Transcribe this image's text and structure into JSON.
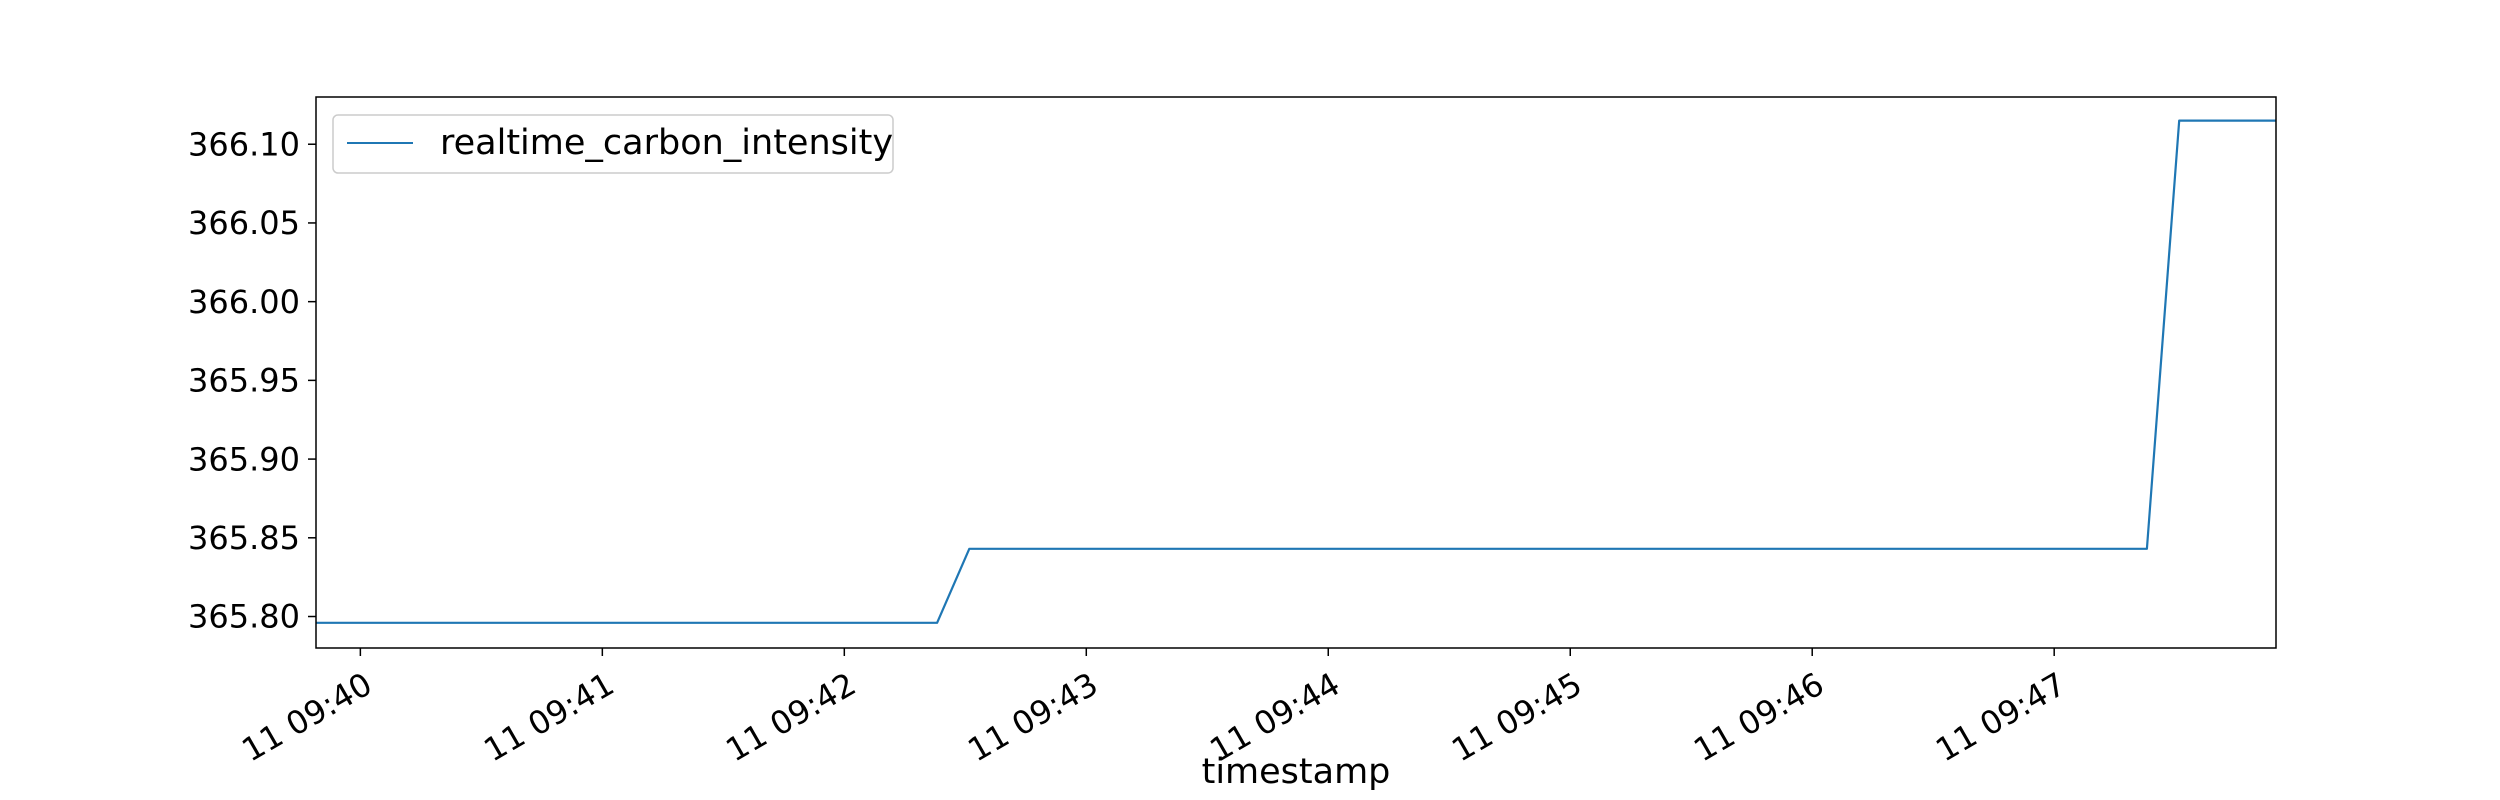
{
  "chart_data": {
    "type": "line",
    "xlabel": "timestamp",
    "ylabel": "",
    "title": "",
    "x_ticks": [
      "11 09:40",
      "11 09:41",
      "11 09:42",
      "11 09:43",
      "11 09:44",
      "11 09:45",
      "11 09:46",
      "11 09:47"
    ],
    "y_ticks": [
      "365.80",
      "365.85",
      "365.90",
      "365.95",
      "366.00",
      "366.05",
      "366.10"
    ],
    "xlim": [
      "09:39:49",
      "09:47:55"
    ],
    "ylim": [
      365.78,
      366.13
    ],
    "legend_position": "upper-left",
    "grid": false,
    "series": [
      {
        "name": "realtime_carbon_intensity",
        "color": "#1f77b4",
        "x": [
          "09:39:49",
          "09:42:23",
          "09:42:31",
          "09:47:23",
          "09:47:31",
          "09:47:55"
        ],
        "y": [
          365.796,
          365.796,
          365.843,
          365.843,
          366.115,
          366.115
        ]
      }
    ]
  }
}
